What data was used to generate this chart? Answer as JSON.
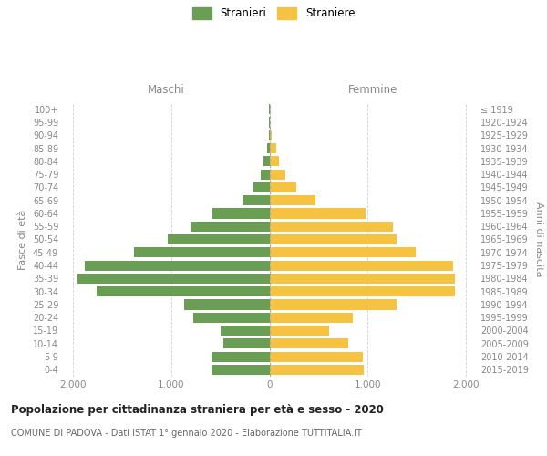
{
  "age_groups": [
    "0-4",
    "5-9",
    "10-14",
    "15-19",
    "20-24",
    "25-29",
    "30-34",
    "35-39",
    "40-44",
    "45-49",
    "50-54",
    "55-59",
    "60-64",
    "65-69",
    "70-74",
    "75-79",
    "80-84",
    "85-89",
    "90-94",
    "95-99",
    "100+"
  ],
  "birth_years": [
    "2015-2019",
    "2010-2014",
    "2005-2009",
    "2000-2004",
    "1995-1999",
    "1990-1994",
    "1985-1989",
    "1980-1984",
    "1975-1979",
    "1970-1974",
    "1965-1969",
    "1960-1964",
    "1955-1959",
    "1950-1954",
    "1945-1949",
    "1940-1944",
    "1935-1939",
    "1930-1934",
    "1925-1929",
    "1920-1924",
    "≤ 1919"
  ],
  "maschi": [
    590,
    590,
    470,
    500,
    770,
    870,
    1760,
    1950,
    1880,
    1380,
    1030,
    800,
    580,
    270,
    160,
    90,
    60,
    20,
    5,
    2,
    2
  ],
  "femmine": [
    960,
    950,
    800,
    610,
    850,
    1290,
    1890,
    1890,
    1870,
    1490,
    1290,
    1260,
    980,
    470,
    270,
    160,
    100,
    70,
    20,
    5,
    2
  ],
  "maschi_color": "#6b9e55",
  "femmine_color": "#f5c242",
  "title": "Popolazione per cittadinanza straniera per età e sesso - 2020",
  "subtitle": "COMUNE DI PADOVA - Dati ISTAT 1° gennaio 2020 - Elaborazione TUTTITALIA.IT",
  "col_maschi": "Maschi",
  "col_femmine": "Femmine",
  "ylabel": "Fasce di età",
  "ylabel_right": "Anni di nascita",
  "legend_maschi": "Stranieri",
  "legend_femmine": "Straniere",
  "xlim": 2100,
  "background_color": "#ffffff",
  "grid_color": "#d0d0d0"
}
